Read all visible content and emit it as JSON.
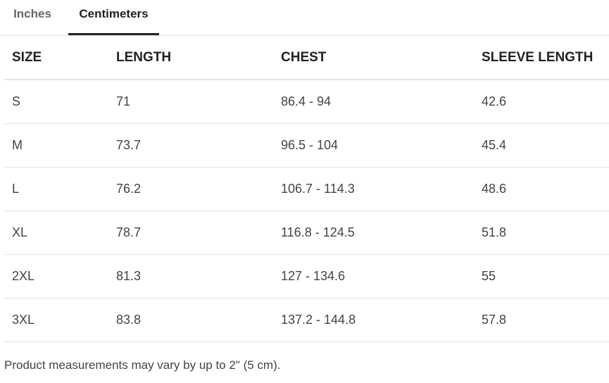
{
  "tabs": [
    {
      "label": "Inches",
      "active": false
    },
    {
      "label": "Centimeters",
      "active": true
    }
  ],
  "table": {
    "headers": [
      "SIZE",
      "LENGTH",
      "CHEST",
      "SLEEVE LENGTH"
    ],
    "rows": [
      [
        "S",
        "71",
        "86.4 - 94",
        "42.6"
      ],
      [
        "M",
        "73.7",
        "96.5 - 104",
        "45.4"
      ],
      [
        "L",
        "76.2",
        "106.7 - 114.3",
        "48.6"
      ],
      [
        "XL",
        "78.7",
        "116.8 - 124.5",
        "51.8"
      ],
      [
        "2XL",
        "81.3",
        "127 - 134.6",
        "55"
      ],
      [
        "3XL",
        "83.8",
        "137.2 - 144.8",
        "57.8"
      ]
    ]
  },
  "note": "Product measurements may vary by up to 2\" (5 cm)."
}
